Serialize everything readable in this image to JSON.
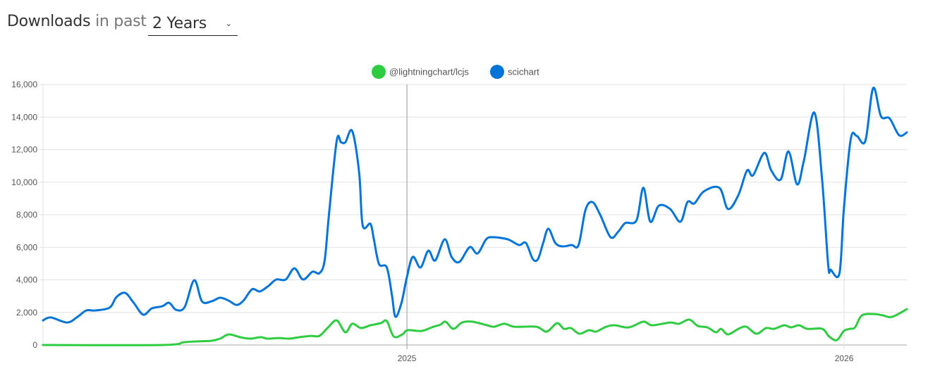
{
  "header": {
    "title": "Downloads",
    "subtitle": "in past",
    "range_select": {
      "value": "2 Years",
      "chevron_icon": "chevron-down-icon"
    }
  },
  "colors": {
    "lightningchart": "#2ecc40",
    "scichart": "#0074d9",
    "grid": "#e0e0e0",
    "axis": "#aaaaaa"
  },
  "legend": [
    {
      "label": "@lightningchart/lcjs",
      "color": "#2ecc40"
    },
    {
      "label": "scichart",
      "color": "#0074d9"
    }
  ],
  "chart_data": {
    "type": "line",
    "title": "Downloads in past 2 Years",
    "xlabel": "",
    "ylabel": "",
    "ylim": [
      0,
      16000
    ],
    "yticks": [
      "0",
      "2,000",
      "4,000",
      "6,000",
      "8,000",
      "10,000",
      "12,000",
      "14,000",
      "16,000"
    ],
    "xticks": [
      {
        "label": "2025",
        "pos": 0.4213
      },
      {
        "label": "2026",
        "pos": 0.9274
      }
    ],
    "grid": true,
    "legend_position": "top",
    "x_range_note": "x is fraction of the 2-year window (0 = start, 1 = end)",
    "series": [
      {
        "name": "@lightningchart/lcjs",
        "color": "#2ecc40",
        "points": [
          [
            0.0,
            0
          ],
          [
            0.138,
            0
          ],
          [
            0.163,
            170
          ],
          [
            0.179,
            220
          ],
          [
            0.195,
            260
          ],
          [
            0.205,
            390
          ],
          [
            0.215,
            650
          ],
          [
            0.228,
            480
          ],
          [
            0.24,
            390
          ],
          [
            0.252,
            480
          ],
          [
            0.26,
            390
          ],
          [
            0.273,
            430
          ],
          [
            0.285,
            390
          ],
          [
            0.297,
            480
          ],
          [
            0.31,
            560
          ],
          [
            0.32,
            560
          ],
          [
            0.33,
            1080
          ],
          [
            0.34,
            1510
          ],
          [
            0.35,
            780
          ],
          [
            0.358,
            1300
          ],
          [
            0.368,
            1040
          ],
          [
            0.379,
            1210
          ],
          [
            0.391,
            1340
          ],
          [
            0.398,
            1470
          ],
          [
            0.406,
            520
          ],
          [
            0.416,
            650
          ],
          [
            0.422,
            910
          ],
          [
            0.438,
            860
          ],
          [
            0.45,
            1080
          ],
          [
            0.46,
            1250
          ],
          [
            0.466,
            1430
          ],
          [
            0.475,
            990
          ],
          [
            0.485,
            1380
          ],
          [
            0.497,
            1430
          ],
          [
            0.514,
            1210
          ],
          [
            0.522,
            1120
          ],
          [
            0.534,
            1300
          ],
          [
            0.546,
            1120
          ],
          [
            0.571,
            1120
          ],
          [
            0.583,
            820
          ],
          [
            0.595,
            1340
          ],
          [
            0.603,
            990
          ],
          [
            0.611,
            1040
          ],
          [
            0.621,
            690
          ],
          [
            0.632,
            910
          ],
          [
            0.64,
            820
          ],
          [
            0.652,
            1120
          ],
          [
            0.662,
            1210
          ],
          [
            0.678,
            1080
          ],
          [
            0.695,
            1430
          ],
          [
            0.705,
            1210
          ],
          [
            0.726,
            1380
          ],
          [
            0.736,
            1300
          ],
          [
            0.748,
            1560
          ],
          [
            0.758,
            1170
          ],
          [
            0.769,
            1080
          ],
          [
            0.779,
            780
          ],
          [
            0.785,
            990
          ],
          [
            0.793,
            650
          ],
          [
            0.805,
            990
          ],
          [
            0.814,
            1120
          ],
          [
            0.826,
            690
          ],
          [
            0.837,
            1040
          ],
          [
            0.846,
            990
          ],
          [
            0.858,
            1210
          ],
          [
            0.866,
            1080
          ],
          [
            0.875,
            1210
          ],
          [
            0.885,
            990
          ],
          [
            0.902,
            990
          ],
          [
            0.91,
            520
          ],
          [
            0.919,
            300
          ],
          [
            0.927,
            860
          ],
          [
            0.934,
            990
          ],
          [
            0.94,
            1080
          ],
          [
            0.948,
            1820
          ],
          [
            0.963,
            1900
          ],
          [
            0.972,
            1820
          ],
          [
            0.983,
            1730
          ],
          [
            1.0,
            2200
          ]
        ]
      },
      {
        "name": "scichart",
        "color": "#0074d9",
        "points": [
          [
            0.0,
            1510
          ],
          [
            0.009,
            1690
          ],
          [
            0.028,
            1380
          ],
          [
            0.04,
            1730
          ],
          [
            0.05,
            2120
          ],
          [
            0.06,
            2120
          ],
          [
            0.077,
            2290
          ],
          [
            0.085,
            2940
          ],
          [
            0.095,
            3200
          ],
          [
            0.105,
            2590
          ],
          [
            0.116,
            1860
          ],
          [
            0.126,
            2250
          ],
          [
            0.138,
            2380
          ],
          [
            0.146,
            2590
          ],
          [
            0.154,
            2160
          ],
          [
            0.164,
            2330
          ],
          [
            0.175,
            3980
          ],
          [
            0.184,
            2680
          ],
          [
            0.195,
            2680
          ],
          [
            0.205,
            2900
          ],
          [
            0.215,
            2720
          ],
          [
            0.224,
            2460
          ],
          [
            0.232,
            2720
          ],
          [
            0.242,
            3420
          ],
          [
            0.251,
            3290
          ],
          [
            0.261,
            3630
          ],
          [
            0.27,
            4020
          ],
          [
            0.281,
            4020
          ],
          [
            0.291,
            4710
          ],
          [
            0.301,
            4020
          ],
          [
            0.312,
            4500
          ],
          [
            0.32,
            4410
          ],
          [
            0.326,
            5190
          ],
          [
            0.331,
            8000
          ],
          [
            0.34,
            12540
          ],
          [
            0.345,
            12450
          ],
          [
            0.35,
            12450
          ],
          [
            0.358,
            13140
          ],
          [
            0.366,
            10590
          ],
          [
            0.37,
            7350
          ],
          [
            0.379,
            7440
          ],
          [
            0.383,
            6490
          ],
          [
            0.389,
            4970
          ],
          [
            0.398,
            4760
          ],
          [
            0.404,
            3030
          ],
          [
            0.408,
            1730
          ],
          [
            0.415,
            2590
          ],
          [
            0.421,
            4110
          ],
          [
            0.428,
            5410
          ],
          [
            0.437,
            4760
          ],
          [
            0.446,
            5790
          ],
          [
            0.454,
            5190
          ],
          [
            0.465,
            6490
          ],
          [
            0.473,
            5410
          ],
          [
            0.482,
            5100
          ],
          [
            0.494,
            6010
          ],
          [
            0.503,
            5620
          ],
          [
            0.513,
            6490
          ],
          [
            0.521,
            6620
          ],
          [
            0.538,
            6490
          ],
          [
            0.551,
            6140
          ],
          [
            0.559,
            6270
          ],
          [
            0.567,
            5280
          ],
          [
            0.573,
            5280
          ],
          [
            0.579,
            6270
          ],
          [
            0.585,
            7140
          ],
          [
            0.593,
            6270
          ],
          [
            0.601,
            6060
          ],
          [
            0.612,
            6140
          ],
          [
            0.62,
            6140
          ],
          [
            0.628,
            8300
          ],
          [
            0.636,
            8780
          ],
          [
            0.645,
            8000
          ],
          [
            0.657,
            6620
          ],
          [
            0.666,
            6970
          ],
          [
            0.674,
            7490
          ],
          [
            0.687,
            7660
          ],
          [
            0.695,
            9650
          ],
          [
            0.703,
            7570
          ],
          [
            0.713,
            8560
          ],
          [
            0.726,
            8350
          ],
          [
            0.738,
            7570
          ],
          [
            0.746,
            8780
          ],
          [
            0.754,
            8690
          ],
          [
            0.765,
            9430
          ],
          [
            0.783,
            9650
          ],
          [
            0.793,
            8350
          ],
          [
            0.805,
            9210
          ],
          [
            0.815,
            10720
          ],
          [
            0.822,
            10420
          ],
          [
            0.835,
            11800
          ],
          [
            0.843,
            10720
          ],
          [
            0.854,
            10160
          ],
          [
            0.863,
            11890
          ],
          [
            0.873,
            9860
          ],
          [
            0.881,
            11370
          ],
          [
            0.893,
            14270
          ],
          [
            0.902,
            10080
          ],
          [
            0.909,
            4890
          ],
          [
            0.912,
            4620
          ],
          [
            0.922,
            4410
          ],
          [
            0.927,
            8300
          ],
          [
            0.935,
            12630
          ],
          [
            0.942,
            12840
          ],
          [
            0.952,
            12540
          ],
          [
            0.961,
            15780
          ],
          [
            0.97,
            14050
          ],
          [
            0.98,
            13920
          ],
          [
            0.991,
            12880
          ],
          [
            1.0,
            13060
          ]
        ]
      }
    ]
  }
}
